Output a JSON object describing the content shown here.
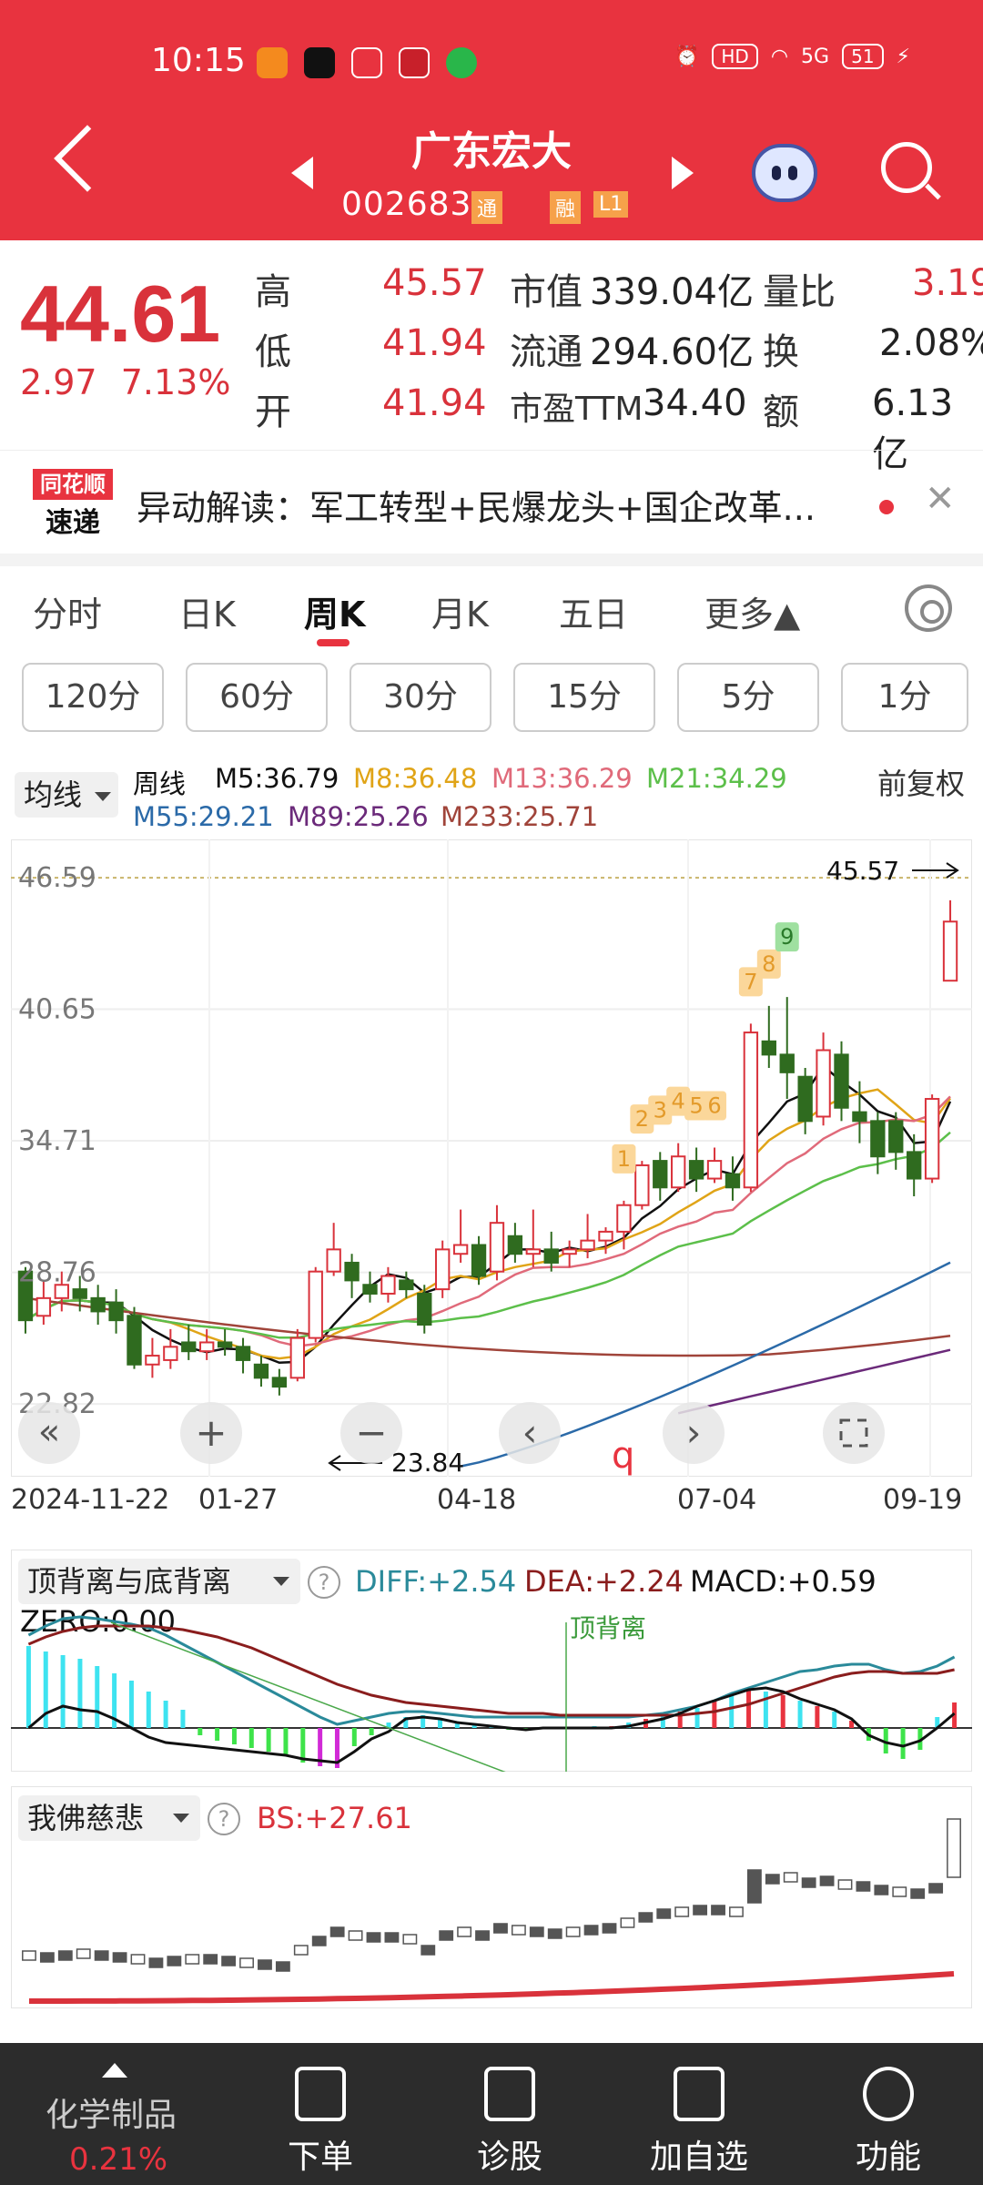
{
  "status_bar": {
    "time": "10:15",
    "network": "5G",
    "battery": "51",
    "hd": "HD"
  },
  "header": {
    "stock_name": "广东宏大",
    "stock_code": "002683",
    "tags": [
      "通",
      "融",
      "L1"
    ]
  },
  "quote": {
    "price": "44.61",
    "change": "2.97",
    "change_pct": "7.13%",
    "rows": [
      {
        "l1": "高",
        "v1": "45.57",
        "l2": "市值",
        "v2": "339.04亿",
        "l3": "量比",
        "v3": "3.19"
      },
      {
        "l1": "低",
        "v1": "41.94",
        "l2": "流通",
        "v2": "294.60亿",
        "l3": "换",
        "v3": "2.08%"
      },
      {
        "l1": "开",
        "v1": "41.94",
        "l2": "市盈TTM",
        "v2": "34.40",
        "l3": "额",
        "v3": "6.13亿"
      }
    ]
  },
  "alert": {
    "logo_top": "同花顺",
    "logo_bottom": "速递",
    "text": "异动解读：军工转型+民爆龙头+国企改革..."
  },
  "period_tabs": [
    "分时",
    "日K",
    "周K",
    "月K",
    "五日",
    "更多▲"
  ],
  "active_period": "周K",
  "minute_tabs": [
    "120分",
    "60分",
    "30分",
    "15分",
    "5分",
    "1分"
  ],
  "ma_legend": {
    "selector": "均线",
    "prefix": "周线",
    "items": [
      {
        "label": "M5:36.79",
        "color": "#111111"
      },
      {
        "label": "M8:36.48",
        "color": "#e0a417"
      },
      {
        "label": "M13:36.29",
        "color": "#e06a7a"
      },
      {
        "label": "M21:34.29",
        "color": "#5cbf4a"
      },
      {
        "label": "M55:29.21",
        "color": "#2b6aa8"
      },
      {
        "label": "M89:25.26",
        "color": "#6b2a7a"
      },
      {
        "label": "M233:25.71",
        "color": "#a0443a"
      }
    ],
    "adjust": "前复权"
  },
  "kchart": {
    "y_ticks": [
      "46.59",
      "40.65",
      "34.71",
      "28.76",
      "22.82"
    ],
    "y_values": [
      46.59,
      40.65,
      34.71,
      28.76,
      22.82
    ],
    "high_label": "45.57",
    "low_label": "23.84",
    "td_counts": [
      "1",
      "2",
      "3",
      "4",
      "5",
      "6",
      "7",
      "8",
      "9"
    ],
    "controls": [
      "«",
      "+",
      "−",
      "‹",
      "›"
    ],
    "marker": "q",
    "dates": [
      "2024-11-22",
      "01-27",
      "04-18",
      "07-04",
      "09-19"
    ]
  },
  "macd": {
    "selector": "顶背离与底背离",
    "diff": "DIFF:+2.54",
    "dea": "DEA:+2.24",
    "macd": "MACD:+0.59",
    "zero": "ZERO:0.00",
    "annotation": "顶背离"
  },
  "bs": {
    "selector": "我佛慈悲",
    "value": "BS:+27.61"
  },
  "bottom_bar": {
    "sector": "化学制品",
    "sector_chg": "0.21%",
    "items": [
      "下单",
      "诊股",
      "加自选",
      "功能"
    ]
  }
}
